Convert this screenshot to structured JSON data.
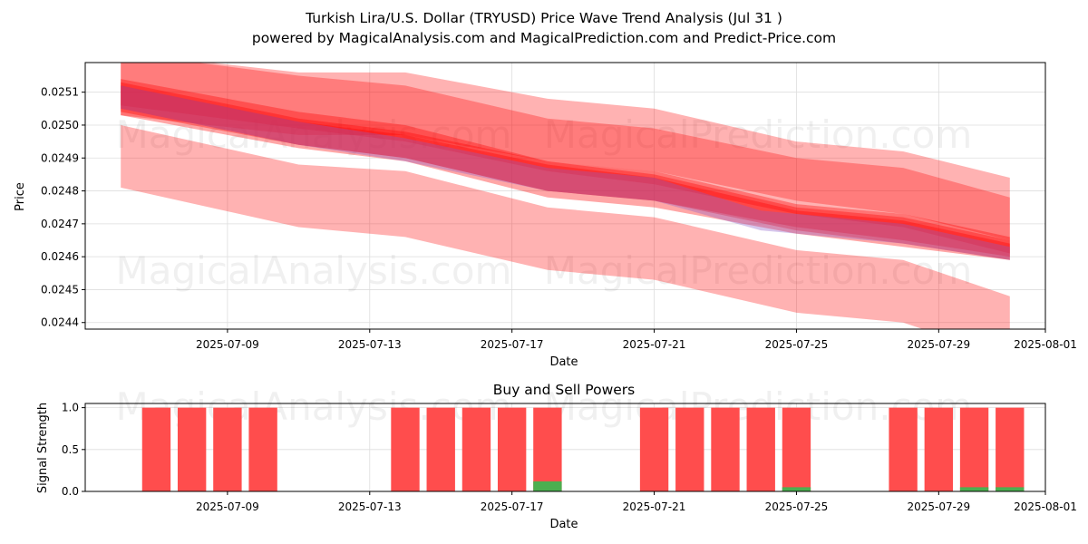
{
  "title_line1": "Turkish Lira/U.S. Dollar (TRYUSD) Price Wave Trend Analysis (Jul 31 )",
  "title_line2": "powered by MagicalAnalysis.com and MagicalPrediction.com and Predict-Price.com",
  "watermarks": [
    "MagicalAnalysis.com",
    "MagicalPrediction.com"
  ],
  "colors": {
    "band": "#ff0000",
    "sell": "#ff4d4d",
    "buy": "#4caf50",
    "purple": "#8a5cc8"
  },
  "chart_data": [
    {
      "type": "area",
      "title": "",
      "xlabel": "Date",
      "ylabel": "Price",
      "xlim": [
        "2025-07-05",
        "2025-08-01"
      ],
      "ylim": [
        0.02438,
        0.02519
      ],
      "grid": true,
      "x_ticks": [
        "2025-07-09",
        "2025-07-13",
        "2025-07-17",
        "2025-07-21",
        "2025-07-25",
        "2025-07-29",
        "2025-08-01"
      ],
      "y_ticks": [
        0.0244,
        0.0245,
        0.0246,
        0.0247,
        0.0248,
        0.0249,
        0.025,
        0.0251
      ],
      "y_tick_labels": [
        "0.0244",
        "0.0245",
        "0.0246",
        "0.0247",
        "0.0248",
        "0.0249",
        "0.0250",
        "0.0251"
      ],
      "bands": [
        {
          "opacity": 0.3,
          "x": [
            "2025-07-06",
            "2025-07-11",
            "2025-07-14",
            "2025-07-18",
            "2025-07-21",
            "2025-07-25",
            "2025-07-28",
            "2025-07-31"
          ],
          "upper": [
            0.025,
            0.02488,
            0.02486,
            0.02475,
            0.02472,
            0.02462,
            0.02459,
            0.02448
          ],
          "lower": [
            0.02481,
            0.02469,
            0.02466,
            0.02456,
            0.02453,
            0.02443,
            0.0244,
            0.02429
          ]
        },
        {
          "opacity": 0.3,
          "x": [
            "2025-07-06",
            "2025-07-11",
            "2025-07-14",
            "2025-07-18",
            "2025-07-21",
            "2025-07-25",
            "2025-07-28",
            "2025-07-31"
          ],
          "upper": [
            0.02522,
            0.02516,
            0.02516,
            0.02508,
            0.02505,
            0.02495,
            0.02492,
            0.02484
          ],
          "lower": [
            0.02503,
            0.02497,
            0.02497,
            0.02489,
            0.02486,
            0.02477,
            0.02473,
            0.02465
          ]
        },
        {
          "opacity": 0.3,
          "x": [
            "2025-07-06",
            "2025-07-11",
            "2025-07-14",
            "2025-07-18",
            "2025-07-21",
            "2025-07-25",
            "2025-07-28",
            "2025-07-31"
          ],
          "upper": [
            0.02522,
            0.02515,
            0.02512,
            0.02502,
            0.02499,
            0.0249,
            0.02487,
            0.02478
          ],
          "lower": [
            0.02506,
            0.02499,
            0.02495,
            0.02486,
            0.02482,
            0.02473,
            0.02469,
            0.02461
          ]
        },
        {
          "opacity": 0.35,
          "x": [
            "2025-07-06",
            "2025-07-11",
            "2025-07-14",
            "2025-07-18",
            "2025-07-21",
            "2025-07-25",
            "2025-07-28",
            "2025-07-31"
          ],
          "upper": [
            0.02514,
            0.02504,
            0.025,
            0.02489,
            0.02486,
            0.02476,
            0.02473,
            0.02466
          ],
          "lower": [
            0.02504,
            0.02494,
            0.0249,
            0.0248,
            0.02477,
            0.02468,
            0.02464,
            0.02459
          ]
        },
        {
          "opacity": 0.35,
          "x": [
            "2025-07-06",
            "2025-07-11",
            "2025-07-14",
            "2025-07-18",
            "2025-07-21",
            "2025-07-25",
            "2025-07-28",
            "2025-07-31"
          ],
          "upper": [
            0.02513,
            0.02502,
            0.02498,
            0.02489,
            0.02485,
            0.02475,
            0.02472,
            0.02465
          ],
          "lower": [
            0.02503,
            0.02493,
            0.02489,
            0.02478,
            0.02475,
            0.02467,
            0.02463,
            0.02459
          ]
        },
        {
          "opacity": 0.35,
          "x": [
            "2025-07-06",
            "2025-07-11",
            "2025-07-14",
            "2025-07-18",
            "2025-07-21",
            "2025-07-25",
            "2025-07-28",
            "2025-07-31"
          ],
          "upper": [
            0.02512,
            0.02501,
            0.02497,
            0.02488,
            0.02484,
            0.02474,
            0.02471,
            0.02464
          ],
          "lower": [
            0.02505,
            0.02494,
            0.0249,
            0.0248,
            0.02477,
            0.02469,
            0.02465,
            0.0246
          ]
        }
      ],
      "purple_band": {
        "x": [
          "2025-07-06",
          "2025-07-11",
          "2025-07-14",
          "2025-07-18",
          "2025-07-21",
          "2025-07-24",
          "2025-07-28",
          "2025-07-31"
        ],
        "upper": [
          0.02512,
          0.02501,
          0.02496,
          0.02487,
          0.02484,
          0.02474,
          0.0247,
          0.02463
        ],
        "lower": [
          0.02505,
          0.02494,
          0.02489,
          0.0248,
          0.02477,
          0.02468,
          0.02464,
          0.02459
        ]
      }
    },
    {
      "type": "bar",
      "title": "Buy and Sell Powers",
      "xlabel": "Date",
      "ylabel": "Signal Strength",
      "xlim": [
        "2025-07-05",
        "2025-08-01"
      ],
      "ylim": [
        0,
        1.05
      ],
      "grid": true,
      "x_ticks": [
        "2025-07-09",
        "2025-07-13",
        "2025-07-17",
        "2025-07-21",
        "2025-07-25",
        "2025-07-29",
        "2025-08-01"
      ],
      "y_ticks": [
        0,
        0.5,
        1
      ],
      "y_tick_labels": [
        "0.0",
        "0.5",
        "1.0"
      ],
      "dates": [
        "2025-07-07",
        "2025-07-08",
        "2025-07-09",
        "2025-07-10",
        "2025-07-14",
        "2025-07-15",
        "2025-07-16",
        "2025-07-17",
        "2025-07-18",
        "2025-07-21",
        "2025-07-22",
        "2025-07-23",
        "2025-07-24",
        "2025-07-25",
        "2025-07-28",
        "2025-07-29",
        "2025-07-30",
        "2025-07-31"
      ],
      "series": [
        {
          "name": "Sell",
          "values": [
            1,
            1,
            1,
            1,
            1,
            1,
            1,
            1,
            1,
            1,
            1,
            1,
            1,
            1,
            1,
            1,
            1,
            1
          ]
        },
        {
          "name": "Buy",
          "values": [
            0,
            0,
            0,
            0,
            0,
            0,
            0,
            0,
            0.12,
            0,
            0,
            0,
            0,
            0.05,
            0,
            0,
            0.05,
            0.05
          ]
        }
      ]
    }
  ]
}
